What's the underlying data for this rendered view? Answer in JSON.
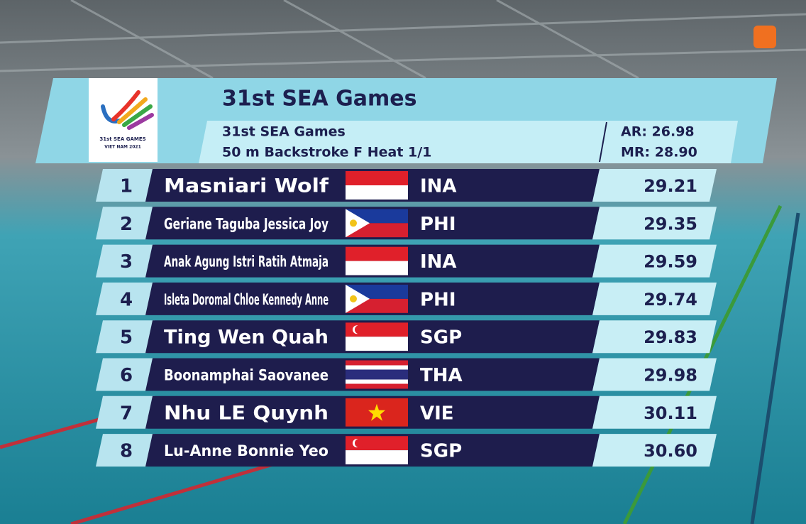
{
  "header": {
    "title": "31st SEA Games",
    "event_line1": "31st SEA Games",
    "event_line2": "50 m Backstroke F Heat 1/1",
    "records": [
      "AR: 26.98",
      "MR: 28.90"
    ],
    "logo": {
      "line1": "31st SEA GAMES",
      "line2": "VIET NAM 2021"
    }
  },
  "results": [
    {
      "rank": 1,
      "name": "Masniari Wolf",
      "country": "INA",
      "time": "29.21"
    },
    {
      "rank": 2,
      "name": "Geriane Taguba Jessica Joy",
      "country": "PHI",
      "time": "29.35"
    },
    {
      "rank": 3,
      "name": "Anak Agung Istri Ratih Atmaja",
      "country": "INA",
      "time": "29.59"
    },
    {
      "rank": 4,
      "name": "Isleta Doromal Chloe Kennedy Anne",
      "country": "PHI",
      "time": "29.74"
    },
    {
      "rank": 5,
      "name": "Ting Wen Quah",
      "country": "SGP",
      "time": "29.83"
    },
    {
      "rank": 6,
      "name": "Boonamphai Saovanee",
      "country": "THA",
      "time": "29.98"
    },
    {
      "rank": 7,
      "name": "Nhu LE Quynh",
      "country": "VIE",
      "time": "30.11"
    },
    {
      "rank": 8,
      "name": "Lu-Anne Bonnie Yeo",
      "country": "SGP",
      "time": "30.60"
    }
  ]
}
